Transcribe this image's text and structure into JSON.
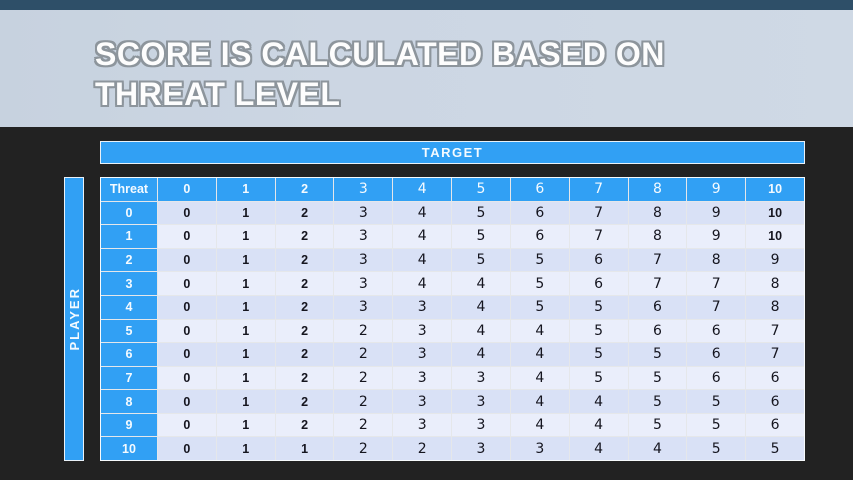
{
  "slide": {
    "title_line1": "SCORE IS CALCULATED BASED ON",
    "title_line2": "THREAT LEVEL"
  },
  "matrix": {
    "target_label": "TARGET",
    "player_label": "PLAYER",
    "corner_label": "Threat",
    "column_headers": [
      "0",
      "1",
      "2",
      "3",
      "4",
      "5",
      "6",
      "7",
      "8",
      "9",
      "10"
    ],
    "rows": [
      {
        "label": "0",
        "values": [
          "0",
          "1",
          "2",
          "3",
          "4",
          "5",
          "6",
          "7",
          "8",
          "9",
          "10"
        ]
      },
      {
        "label": "1",
        "values": [
          "0",
          "1",
          "2",
          "3",
          "4",
          "5",
          "6",
          "7",
          "8",
          "9",
          "10"
        ]
      },
      {
        "label": "2",
        "values": [
          "0",
          "1",
          "2",
          "3",
          "4",
          "5",
          "5",
          "6",
          "7",
          "8",
          "9"
        ]
      },
      {
        "label": "3",
        "values": [
          "0",
          "1",
          "2",
          "3",
          "4",
          "4",
          "5",
          "6",
          "7",
          "7",
          "8"
        ]
      },
      {
        "label": "4",
        "values": [
          "0",
          "1",
          "2",
          "3",
          "3",
          "4",
          "5",
          "5",
          "6",
          "7",
          "8"
        ]
      },
      {
        "label": "5",
        "values": [
          "0",
          "1",
          "2",
          "2",
          "3",
          "4",
          "4",
          "5",
          "6",
          "6",
          "7"
        ]
      },
      {
        "label": "6",
        "values": [
          "0",
          "1",
          "2",
          "2",
          "3",
          "4",
          "4",
          "5",
          "5",
          "6",
          "7"
        ]
      },
      {
        "label": "7",
        "values": [
          "0",
          "1",
          "2",
          "2",
          "3",
          "3",
          "4",
          "5",
          "5",
          "6",
          "6"
        ]
      },
      {
        "label": "8",
        "values": [
          "0",
          "1",
          "2",
          "2",
          "3",
          "3",
          "4",
          "4",
          "5",
          "5",
          "6"
        ]
      },
      {
        "label": "9",
        "values": [
          "0",
          "1",
          "2",
          "2",
          "3",
          "3",
          "4",
          "4",
          "5",
          "5",
          "6"
        ]
      },
      {
        "label": "10",
        "values": [
          "0",
          "1",
          "1",
          "2",
          "2",
          "3",
          "3",
          "4",
          "4",
          "5",
          "5"
        ]
      }
    ]
  },
  "colors": {
    "accent_blue": "#31A0F4",
    "row_band_dark": "#D9E1F6",
    "row_band_light": "#EAEEFB",
    "banner": "#CCD6E3",
    "top_strip": "#2E4F68",
    "cell_text": "#15151F"
  }
}
